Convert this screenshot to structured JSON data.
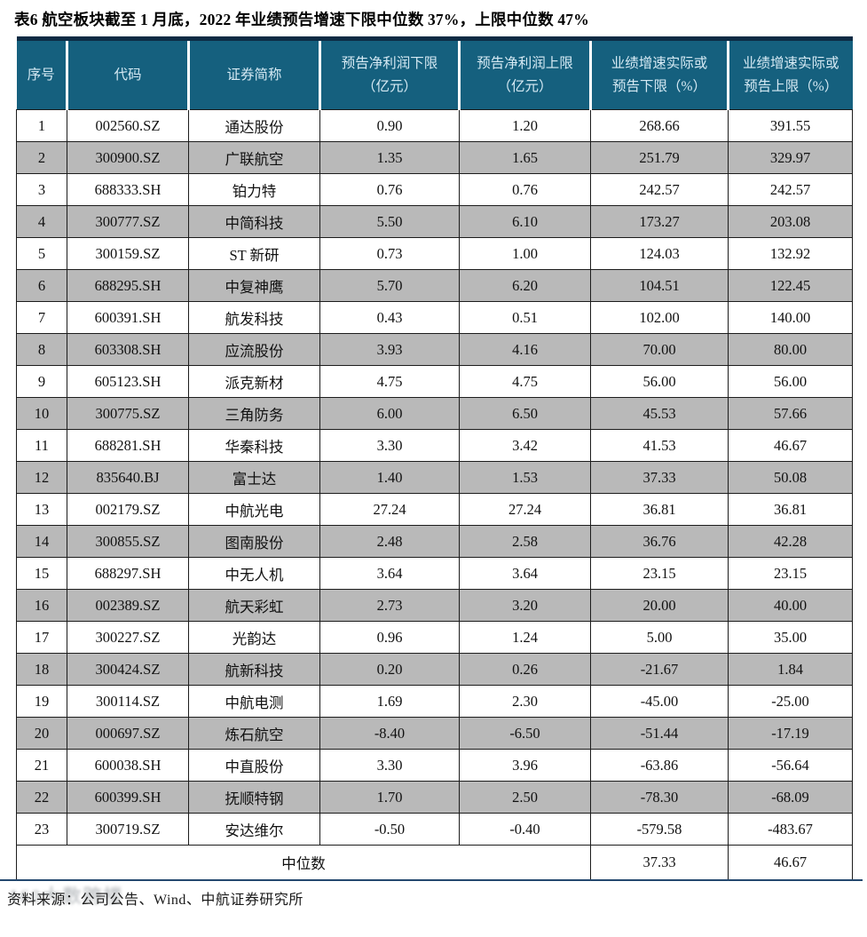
{
  "title": "表6 航空板块截至 1 月底，2022 年业绩预告增速下限中位数 37%，上限中位数 47%",
  "table": {
    "headers": [
      [
        "序号"
      ],
      [
        "代码"
      ],
      [
        "证券简称"
      ],
      [
        "预告净利润下限",
        "（亿元）"
      ],
      [
        "预告净利润上限",
        "（亿元）"
      ],
      [
        "业绩增速实际或",
        "预告下限（%）"
      ],
      [
        "业绩增速实际或",
        "预告上限（%）"
      ]
    ],
    "rows": [
      [
        "1",
        "002560.SZ",
        "通达股份",
        "0.90",
        "1.20",
        "268.66",
        "391.55"
      ],
      [
        "2",
        "300900.SZ",
        "广联航空",
        "1.35",
        "1.65",
        "251.79",
        "329.97"
      ],
      [
        "3",
        "688333.SH",
        "铂力特",
        "0.76",
        "0.76",
        "242.57",
        "242.57"
      ],
      [
        "4",
        "300777.SZ",
        "中简科技",
        "5.50",
        "6.10",
        "173.27",
        "203.08"
      ],
      [
        "5",
        "300159.SZ",
        "ST 新研",
        "0.73",
        "1.00",
        "124.03",
        "132.92"
      ],
      [
        "6",
        "688295.SH",
        "中复神鹰",
        "5.70",
        "6.20",
        "104.51",
        "122.45"
      ],
      [
        "7",
        "600391.SH",
        "航发科技",
        "0.43",
        "0.51",
        "102.00",
        "140.00"
      ],
      [
        "8",
        "603308.SH",
        "应流股份",
        "3.93",
        "4.16",
        "70.00",
        "80.00"
      ],
      [
        "9",
        "605123.SH",
        "派克新材",
        "4.75",
        "4.75",
        "56.00",
        "56.00"
      ],
      [
        "10",
        "300775.SZ",
        "三角防务",
        "6.00",
        "6.50",
        "45.53",
        "57.66"
      ],
      [
        "11",
        "688281.SH",
        "华秦科技",
        "3.30",
        "3.42",
        "41.53",
        "46.67"
      ],
      [
        "12",
        "835640.BJ",
        "富士达",
        "1.40",
        "1.53",
        "37.33",
        "50.08"
      ],
      [
        "13",
        "002179.SZ",
        "中航光电",
        "27.24",
        "27.24",
        "36.81",
        "36.81"
      ],
      [
        "14",
        "300855.SZ",
        "图南股份",
        "2.48",
        "2.58",
        "36.76",
        "42.28"
      ],
      [
        "15",
        "688297.SH",
        "中无人机",
        "3.64",
        "3.64",
        "23.15",
        "23.15"
      ],
      [
        "16",
        "002389.SZ",
        "航天彩虹",
        "2.73",
        "3.20",
        "20.00",
        "40.00"
      ],
      [
        "17",
        "300227.SZ",
        "光韵达",
        "0.96",
        "1.24",
        "5.00",
        "35.00"
      ],
      [
        "18",
        "300424.SZ",
        "航新科技",
        "0.20",
        "0.26",
        "-21.67",
        "1.84"
      ],
      [
        "19",
        "300114.SZ",
        "中航电测",
        "1.69",
        "2.30",
        "-45.00",
        "-25.00"
      ],
      [
        "20",
        "000697.SZ",
        "炼石航空",
        "-8.40",
        "-6.50",
        "-51.44",
        "-17.19"
      ],
      [
        "21",
        "600038.SH",
        "中直股份",
        "3.30",
        "3.96",
        "-63.86",
        "-56.64"
      ],
      [
        "22",
        "600399.SH",
        "抚顺特钢",
        "1.70",
        "2.50",
        "-78.30",
        "-68.09"
      ],
      [
        "23",
        "300719.SZ",
        "安达维尔",
        "-0.50",
        "-0.40",
        "-579.58",
        "-483.67"
      ]
    ]
  },
  "median": {
    "label": "中位数",
    "lower": "37.33",
    "upper": "46.67"
  },
  "source": "资料来源：公司公告、Wind、中航证券研究所",
  "watermark": "160大数跨楼",
  "colors": {
    "header_bg": "#15607E",
    "header_text": "#D6EAF4",
    "top_border": "#0D2B44",
    "stripe": "#B9B9B9",
    "cell_border": "#1C1C1C",
    "bottom_rule": "#24486E"
  }
}
